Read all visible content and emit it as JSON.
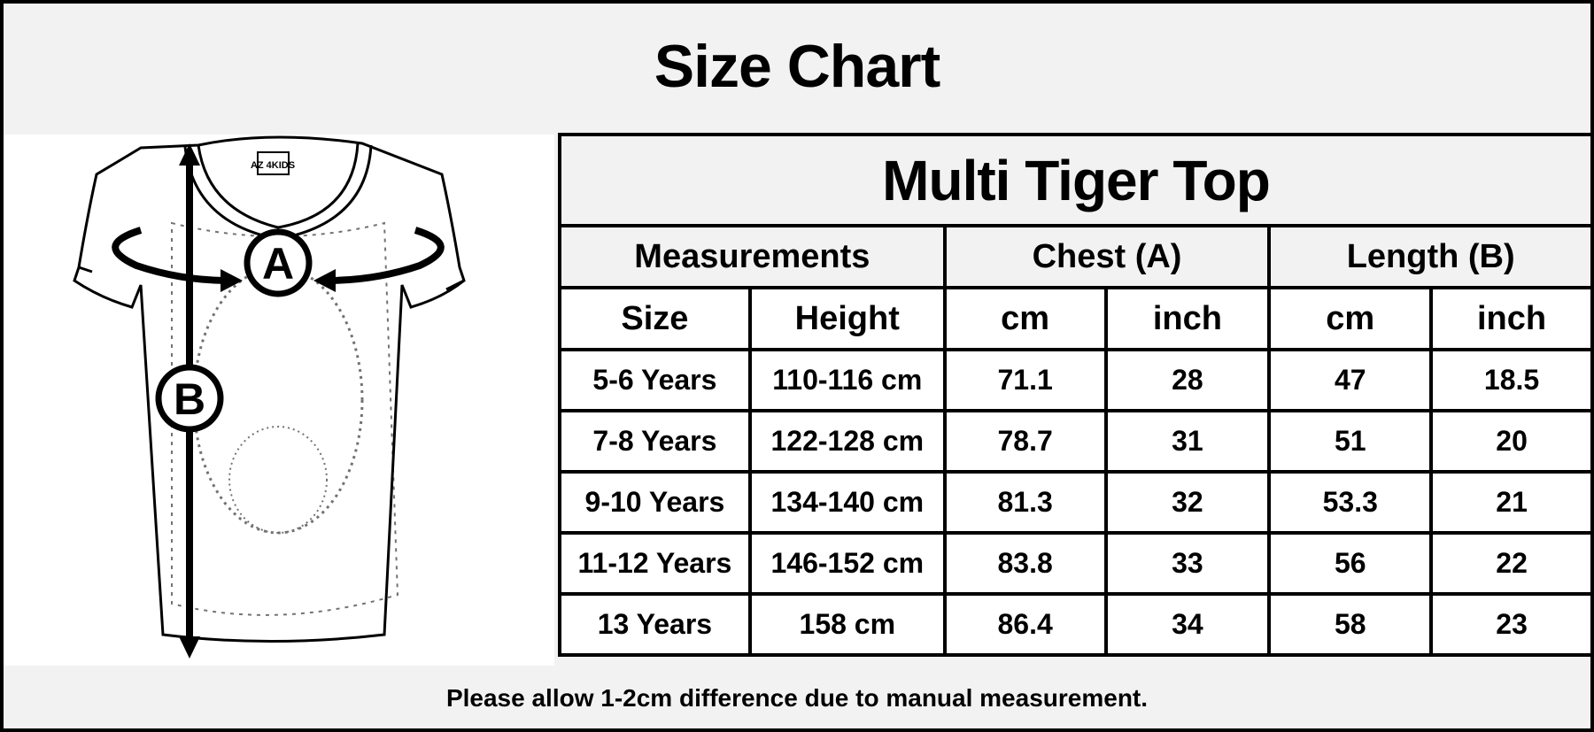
{
  "title": "Size Chart",
  "product_title": "Multi Tiger Top",
  "illustration": {
    "type": "t-shirt line drawing",
    "brand_tag": "AZ 4KIDS",
    "markers": [
      "A",
      "B"
    ]
  },
  "headers": {
    "group": [
      "Measurements",
      "Chest (A)",
      "Length (B)"
    ],
    "columns": [
      "Size",
      "Height",
      "cm",
      "inch",
      "cm",
      "inch"
    ]
  },
  "rows": [
    [
      "5-6 Years",
      "110-116 cm",
      "71.1",
      "28",
      "47",
      "18.5"
    ],
    [
      "7-8 Years",
      "122-128 cm",
      "78.7",
      "31",
      "51",
      "20"
    ],
    [
      "9-10 Years",
      "134-140 cm",
      "81.3",
      "32",
      "53.3",
      "21"
    ],
    [
      "11-12 Years",
      "146-152 cm",
      "83.8",
      "33",
      "56",
      "22"
    ],
    [
      "13 Years",
      "158 cm",
      "86.4",
      "34",
      "58",
      "23"
    ]
  ],
  "footer": "Please allow 1-2cm difference due to manual measurement.",
  "colors": {
    "border": "#000000",
    "header_bg": "#f2f2f2",
    "cell_bg": "#ffffff"
  }
}
